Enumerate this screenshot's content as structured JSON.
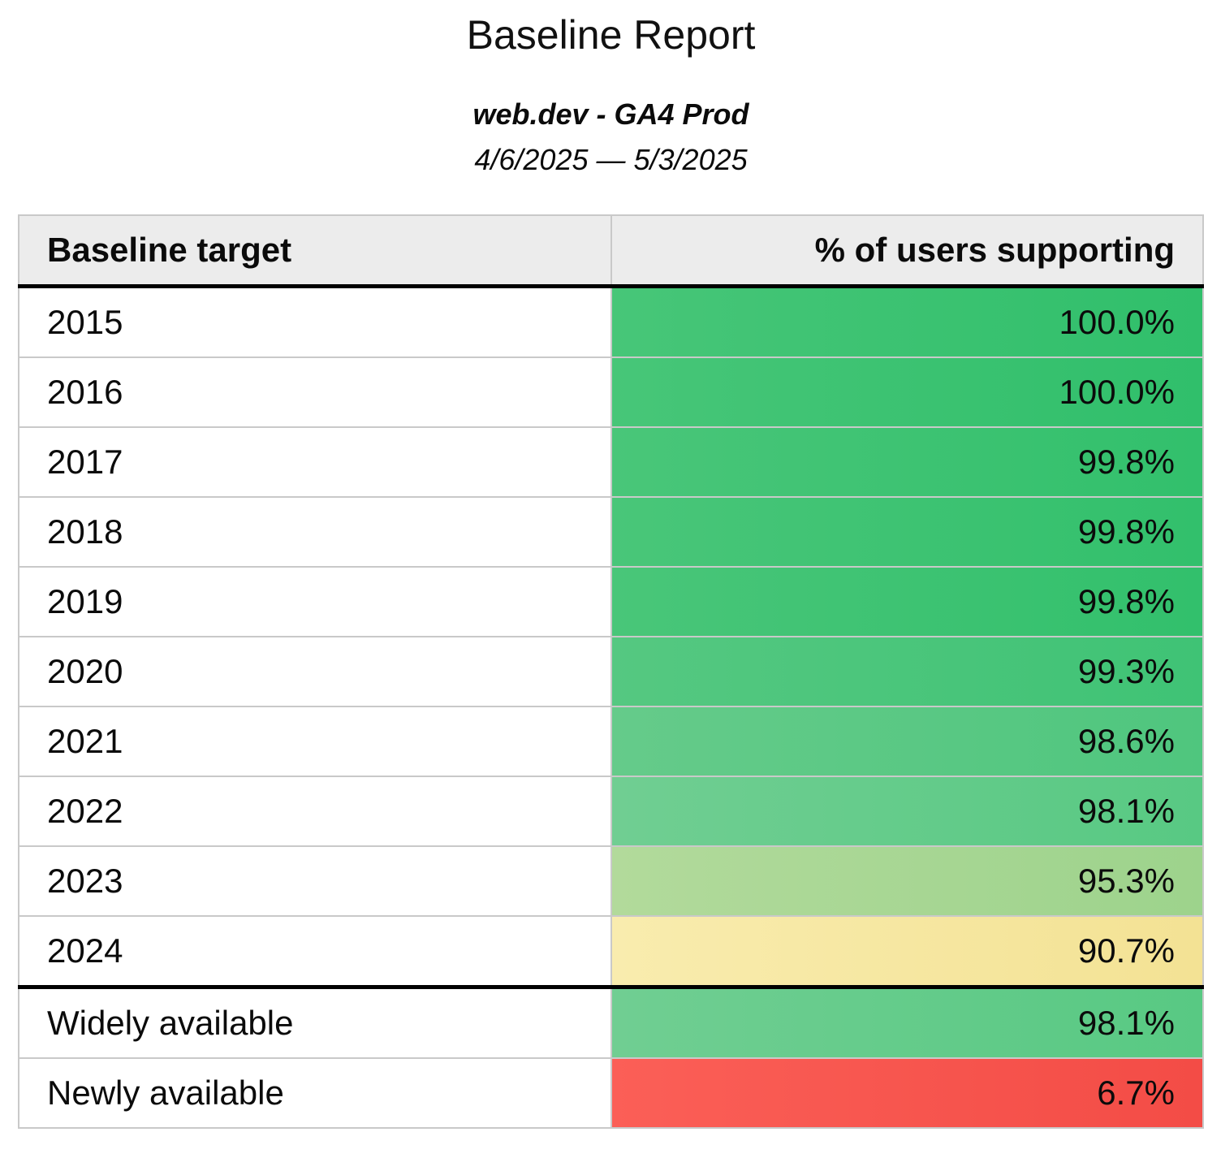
{
  "page": {
    "title": "Baseline Report",
    "subtitle": "web.dev - GA4 Prod",
    "date_range": "4/6/2025 — 5/3/2025"
  },
  "table": {
    "header": {
      "target": "Baseline target",
      "value": "% of users supporting"
    },
    "rows": [
      {
        "label": "2015",
        "value": "100.0%",
        "color_from": "#47c678",
        "color_to": "#30bf6b",
        "thick_bottom": false
      },
      {
        "label": "2016",
        "value": "100.0%",
        "color_from": "#47c678",
        "color_to": "#30bf6b",
        "thick_bottom": false
      },
      {
        "label": "2017",
        "value": "99.8%",
        "color_from": "#49c679",
        "color_to": "#32c06c",
        "thick_bottom": false
      },
      {
        "label": "2018",
        "value": "99.8%",
        "color_from": "#49c679",
        "color_to": "#32c06c",
        "thick_bottom": false
      },
      {
        "label": "2019",
        "value": "99.8%",
        "color_from": "#49c679",
        "color_to": "#32c06c",
        "thick_bottom": false
      },
      {
        "label": "2020",
        "value": "99.3%",
        "color_from": "#55c881",
        "color_to": "#3fc375",
        "thick_bottom": false
      },
      {
        "label": "2021",
        "value": "98.6%",
        "color_from": "#65cb8a",
        "color_to": "#4fc67e",
        "thick_bottom": false
      },
      {
        "label": "2022",
        "value": "98.1%",
        "color_from": "#70ce92",
        "color_to": "#58c983",
        "thick_bottom": false
      },
      {
        "label": "2023",
        "value": "95.3%",
        "color_from": "#b2da9b",
        "color_to": "#9dd38c",
        "thick_bottom": false
      },
      {
        "label": "2024",
        "value": "90.7%",
        "color_from": "#f9ecae",
        "color_to": "#f3e294",
        "thick_bottom": true
      },
      {
        "label": "Widely available",
        "value": "98.1%",
        "color_from": "#70ce92",
        "color_to": "#58c983",
        "thick_bottom": false
      },
      {
        "label": "Newly available",
        "value": "6.7%",
        "color_from": "#fb5f57",
        "color_to": "#f34c46",
        "thick_bottom": false
      }
    ]
  },
  "colors": {
    "header_background": "#ececec",
    "cell_border": "#c9c9c9",
    "section_divider": "#000000",
    "text": "#0b0b0b"
  },
  "chart_data": {
    "type": "table",
    "title": "Baseline Report",
    "subtitle": "web.dev - GA4 Prod",
    "date_range": "4/6/2025 — 5/3/2025",
    "columns": [
      "Baseline target",
      "% of users supporting"
    ],
    "rows": [
      [
        "2015",
        100.0
      ],
      [
        "2016",
        100.0
      ],
      [
        "2017",
        99.8
      ],
      [
        "2018",
        99.8
      ],
      [
        "2019",
        99.8
      ],
      [
        "2020",
        99.3
      ],
      [
        "2021",
        98.6
      ],
      [
        "2022",
        98.1
      ],
      [
        "2023",
        95.3
      ],
      [
        "2024",
        90.7
      ],
      [
        "Widely available",
        98.1
      ],
      [
        "Newly available",
        6.7
      ]
    ]
  }
}
